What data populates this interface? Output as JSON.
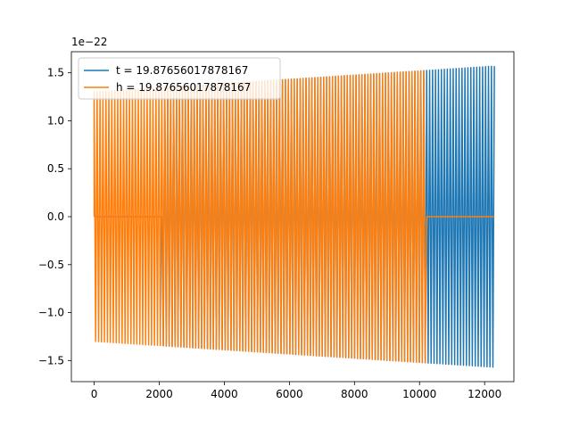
{
  "chart_data": {
    "type": "line",
    "title": "",
    "xlabel": "",
    "ylabel": "",
    "y_offset_text": "1e−22",
    "xlim": [
      -700,
      12900
    ],
    "ylim": [
      -1.72,
      1.72
    ],
    "y_scale_note": "values shown in units of 1e-22",
    "x_ticks": [
      0,
      2000,
      4000,
      6000,
      8000,
      10000,
      12000
    ],
    "x_tick_labels": [
      "0",
      "2000",
      "4000",
      "6000",
      "8000",
      "10000",
      "12000"
    ],
    "y_ticks": [
      -1.5,
      -1.0,
      -0.5,
      0.0,
      0.5,
      1.0,
      1.5
    ],
    "y_tick_labels": [
      "−1.5",
      "−1.0",
      "−0.5",
      "0.0",
      "0.5",
      "1.0",
      "1.5"
    ],
    "grid": false,
    "legend_position": "upper-left",
    "series": [
      {
        "name": "t = 19.87656017878167",
        "color": "#1f77b4",
        "x_start": 0,
        "x_end": 12300,
        "zero_start": 0,
        "zero_end": 2100,
        "amp_start": 1.3,
        "amp_end": 1.57,
        "cycles": 136
      },
      {
        "name": "h = 19.87656017878167",
        "color": "#ff7f0e",
        "x_start": 0,
        "x_end": 12300,
        "zero_start": 10200,
        "zero_end": 12300,
        "amp_start": 1.3,
        "amp_end": 1.57,
        "cycles": 136
      }
    ]
  }
}
